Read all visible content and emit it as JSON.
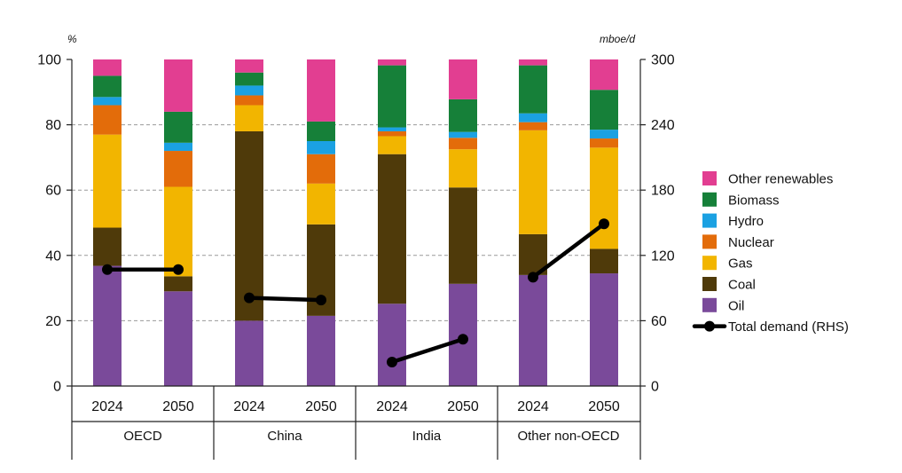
{
  "chart_data": {
    "type": "bar",
    "stacked": true,
    "groups": [
      "OECD",
      "China",
      "India",
      "Other non-OECD"
    ],
    "categories": [
      "2024",
      "2050",
      "2024",
      "2050",
      "2024",
      "2050",
      "2024",
      "2050"
    ],
    "group_index": [
      0,
      0,
      1,
      1,
      2,
      2,
      3,
      3
    ],
    "left_unit": "%",
    "right_unit": "mboe/d",
    "ylim_left": [
      0,
      100
    ],
    "ylim_right": [
      0,
      300
    ],
    "yticks_left": [
      "0",
      "20",
      "40",
      "60",
      "80",
      "100"
    ],
    "yticks_right": [
      "0",
      "60",
      "120",
      "180",
      "240",
      "300"
    ],
    "grid": true,
    "legend_position": "right",
    "series": [
      {
        "name": "Oil",
        "color": "#7a4a9a",
        "values": [
          36.8,
          29.0,
          20.0,
          21.5,
          25.2,
          31.3,
          34.0,
          34.5
        ]
      },
      {
        "name": "Coal",
        "color": "#4f3a0a",
        "values": [
          11.7,
          4.6,
          58.0,
          28.0,
          45.8,
          29.5,
          12.5,
          7.5
        ]
      },
      {
        "name": "Gas",
        "color": "#f2b500",
        "values": [
          28.5,
          27.4,
          8.0,
          12.5,
          5.5,
          11.7,
          31.8,
          31.0
        ]
      },
      {
        "name": "Nuclear",
        "color": "#e36c0a",
        "values": [
          9.0,
          11.0,
          3.0,
          9.0,
          1.5,
          3.5,
          2.5,
          2.8
        ]
      },
      {
        "name": "Hydro",
        "color": "#1ba1e2",
        "values": [
          2.5,
          2.5,
          3.0,
          4.0,
          1.2,
          1.8,
          2.7,
          2.7
        ]
      },
      {
        "name": "Biomass",
        "color": "#168039",
        "values": [
          6.5,
          9.5,
          4.0,
          6.0,
          19.0,
          10.0,
          14.7,
          12.2
        ]
      },
      {
        "name": "Other renewables",
        "color": "#e23e91",
        "values": [
          5.0,
          16.0,
          4.0,
          19.0,
          1.8,
          12.2,
          1.8,
          9.3
        ]
      }
    ],
    "line_series": {
      "name": "Total demand (RHS)",
      "color": "#000000",
      "segments": [
        {
          "group": 0,
          "values": [
            107,
            107
          ]
        },
        {
          "group": 1,
          "values": [
            81,
            79
          ]
        },
        {
          "group": 2,
          "values": [
            22,
            43
          ]
        },
        {
          "group": 3,
          "values": [
            100,
            149
          ]
        }
      ]
    }
  }
}
